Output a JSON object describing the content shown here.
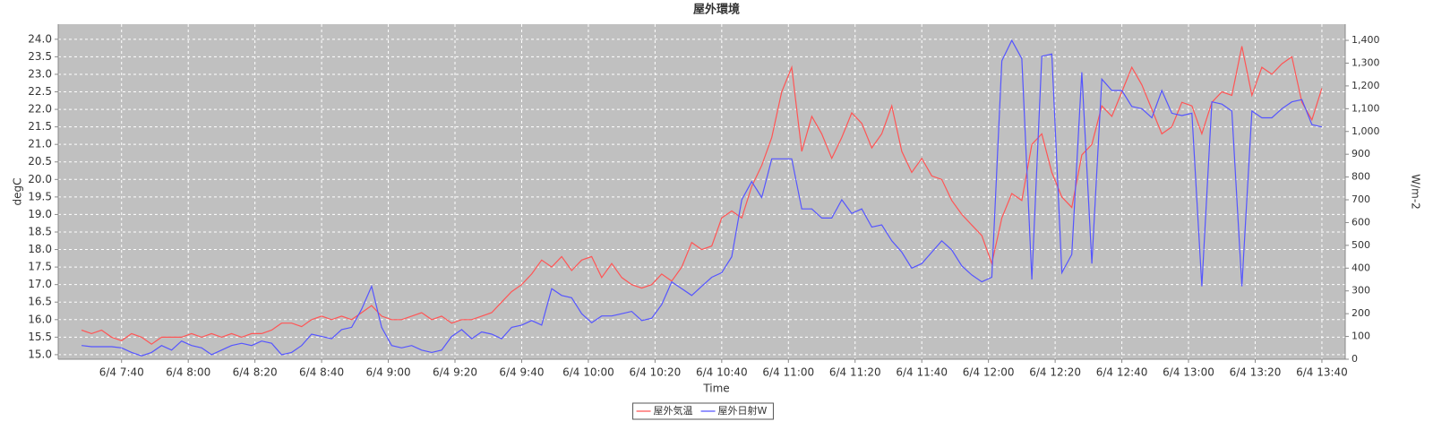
{
  "chart_data": {
    "type": "line",
    "title": "屋外環境",
    "x_label": "Time",
    "y_label": "degC",
    "y2_label": "W/m-2",
    "x": [
      "6/4 7:28",
      "6/4 7:31",
      "6/4 7:34",
      "6/4 7:37",
      "6/4 7:40",
      "6/4 7:43",
      "6/4 7:46",
      "6/4 7:49",
      "6/4 7:52",
      "6/4 7:55",
      "6/4 7:58",
      "6/4 8:01",
      "6/4 8:04",
      "6/4 8:07",
      "6/4 8:10",
      "6/4 8:13",
      "6/4 8:16",
      "6/4 8:19",
      "6/4 8:22",
      "6/4 8:25",
      "6/4 8:28",
      "6/4 8:31",
      "6/4 8:34",
      "6/4 8:37",
      "6/4 8:40",
      "6/4 8:43",
      "6/4 8:46",
      "6/4 8:49",
      "6/4 8:52",
      "6/4 8:55",
      "6/4 8:58",
      "6/4 9:01",
      "6/4 9:04",
      "6/4 9:07",
      "6/4 9:10",
      "6/4 9:13",
      "6/4 9:16",
      "6/4 9:19",
      "6/4 9:22",
      "6/4 9:25",
      "6/4 9:28",
      "6/4 9:31",
      "6/4 9:34",
      "6/4 9:37",
      "6/4 9:40",
      "6/4 9:43",
      "6/4 9:46",
      "6/4 9:49",
      "6/4 9:52",
      "6/4 9:55",
      "6/4 9:58",
      "6/4 10:01",
      "6/4 10:04",
      "6/4 10:07",
      "6/4 10:10",
      "6/4 10:13",
      "6/4 10:16",
      "6/4 10:19",
      "6/4 10:22",
      "6/4 10:25",
      "6/4 10:28",
      "6/4 10:31",
      "6/4 10:34",
      "6/4 10:37",
      "6/4 10:40",
      "6/4 10:43",
      "6/4 10:46",
      "6/4 10:49",
      "6/4 10:52",
      "6/4 10:55",
      "6/4 10:58",
      "6/4 11:01",
      "6/4 11:04",
      "6/4 11:07",
      "6/4 11:10",
      "6/4 11:13",
      "6/4 11:16",
      "6/4 11:19",
      "6/4 11:22",
      "6/4 11:25",
      "6/4 11:28",
      "6/4 11:31",
      "6/4 11:34",
      "6/4 11:37",
      "6/4 11:40",
      "6/4 11:43",
      "6/4 11:46",
      "6/4 11:49",
      "6/4 11:52",
      "6/4 11:55",
      "6/4 11:58",
      "6/4 12:01",
      "6/4 12:04",
      "6/4 12:07",
      "6/4 12:10",
      "6/4 12:13",
      "6/4 12:16",
      "6/4 12:19",
      "6/4 12:22",
      "6/4 12:25",
      "6/4 12:28",
      "6/4 12:31",
      "6/4 12:34",
      "6/4 12:37",
      "6/4 12:40",
      "6/4 12:43",
      "6/4 12:46",
      "6/4 12:49",
      "6/4 12:52",
      "6/4 12:55",
      "6/4 12:58",
      "6/4 13:01",
      "6/4 13:04",
      "6/4 13:07",
      "6/4 13:10",
      "6/4 13:13",
      "6/4 13:16",
      "6/4 13:19",
      "6/4 13:22",
      "6/4 13:25",
      "6/4 13:28",
      "6/4 13:31",
      "6/4 13:34",
      "6/4 13:37",
      "6/4 13:40"
    ],
    "series": [
      {
        "name": "屋外気温",
        "color": "#ff5555",
        "values": [
          15.7,
          15.6,
          15.7,
          15.5,
          15.4,
          15.6,
          15.5,
          15.3,
          15.5,
          15.5,
          15.5,
          15.6,
          15.5,
          15.6,
          15.5,
          15.6,
          15.5,
          15.6,
          15.6,
          15.7,
          15.9,
          15.9,
          15.8,
          16.0,
          16.1,
          16.0,
          16.1,
          16.0,
          16.2,
          16.4,
          16.1,
          16.0,
          16.0,
          16.1,
          16.2,
          16.0,
          16.1,
          15.9,
          16.0,
          16.0,
          16.1,
          16.2,
          16.5,
          16.8,
          17.0,
          17.3,
          17.7,
          17.5,
          17.8,
          17.4,
          17.7,
          17.8,
          17.2,
          17.6,
          17.2,
          17.0,
          16.9,
          17.0,
          17.3,
          17.1,
          17.5,
          18.2,
          18.0,
          18.1,
          18.9,
          19.1,
          18.9,
          19.8,
          20.4,
          21.2,
          22.5,
          23.2,
          20.8,
          21.8,
          21.3,
          20.6,
          21.2,
          21.9,
          21.6,
          20.9,
          21.3,
          22.1,
          20.8,
          20.2,
          20.6,
          20.1,
          20.0,
          19.4,
          19.0,
          18.7,
          18.4,
          17.6,
          18.9,
          19.6,
          19.4,
          21.0,
          21.3,
          20.2,
          19.5,
          19.2,
          20.7,
          21.0,
          22.1,
          21.8,
          22.5,
          23.2,
          22.7,
          22.0,
          21.3,
          21.5,
          22.2,
          22.1,
          21.3,
          22.2,
          22.5,
          22.4,
          23.8,
          22.4,
          23.2,
          23.0,
          23.3,
          23.5,
          22.2,
          21.7,
          22.6
        ]
      },
      {
        "name": "屋外日射W",
        "color": "#5555ff",
        "axis": "y2",
        "values": [
          60,
          55,
          55,
          55,
          50,
          30,
          15,
          30,
          60,
          40,
          80,
          60,
          50,
          20,
          40,
          60,
          70,
          60,
          80,
          70,
          20,
          30,
          60,
          110,
          100,
          90,
          130,
          140,
          220,
          320,
          140,
          60,
          50,
          60,
          40,
          30,
          40,
          100,
          130,
          90,
          120,
          110,
          90,
          140,
          150,
          170,
          150,
          310,
          280,
          270,
          200,
          160,
          190,
          190,
          200,
          210,
          170,
          180,
          240,
          340,
          310,
          280,
          320,
          360,
          380,
          450,
          700,
          780,
          710,
          880,
          880,
          880,
          660,
          660,
          620,
          620,
          700,
          640,
          660,
          580,
          590,
          520,
          470,
          400,
          420,
          470,
          520,
          480,
          410,
          370,
          340,
          360,
          1310,
          1400,
          1320,
          350,
          1330,
          1340,
          380,
          460,
          1260,
          420,
          1230,
          1180,
          1180,
          1110,
          1100,
          1060,
          1180,
          1080,
          1070,
          1080,
          320,
          1130,
          1120,
          1090,
          320,
          1090,
          1060,
          1060,
          1100,
          1130,
          1140,
          1030,
          1020
        ]
      }
    ],
    "xlim": [
      "6/4 7:21",
      "6/4 13:47"
    ],
    "xticks": [
      "6/4 7:40",
      "6/4 8:00",
      "6/4 8:20",
      "6/4 8:40",
      "6/4 9:00",
      "6/4 9:20",
      "6/4 9:40",
      "6/4 10:00",
      "6/4 10:20",
      "6/4 10:40",
      "6/4 11:00",
      "6/4 11:20",
      "6/4 11:40",
      "6/4 12:00",
      "6/4 12:20",
      "6/4 12:40",
      "6/4 13:00",
      "6/4 13:20",
      "6/4 13:40"
    ],
    "ylim": [
      14.87,
      24.43
    ],
    "yticks": [
      {
        "value": 15,
        "label": "15.0"
      },
      {
        "value": 15.5,
        "label": "15.5"
      },
      {
        "value": 16,
        "label": "16.0"
      },
      {
        "value": 16.5,
        "label": "16.5"
      },
      {
        "value": 17,
        "label": "17.0"
      },
      {
        "value": 17.5,
        "label": "17.5"
      },
      {
        "value": 18,
        "label": "18.0"
      },
      {
        "value": 18.5,
        "label": "18.5"
      },
      {
        "value": 19,
        "label": "19.0"
      },
      {
        "value": 19.5,
        "label": "19.5"
      },
      {
        "value": 20,
        "label": "20.0"
      },
      {
        "value": 20.5,
        "label": "20.5"
      },
      {
        "value": 21,
        "label": "21.0"
      },
      {
        "value": 21.5,
        "label": "21.5"
      },
      {
        "value": 22,
        "label": "22.0"
      },
      {
        "value": 22.5,
        "label": "22.5"
      },
      {
        "value": 23,
        "label": "23.0"
      },
      {
        "value": 23.5,
        "label": "23.5"
      },
      {
        "value": 24,
        "label": "24.0"
      }
    ],
    "y2lim": [
      0,
      1471
    ],
    "y2ticks": [
      0,
      100,
      200,
      300,
      400,
      500,
      600,
      700,
      800,
      900,
      {
        "value": 1000,
        "label": "1,000"
      },
      {
        "value": 1100,
        "label": "1,100"
      },
      {
        "value": 1200,
        "label": "1,200"
      },
      {
        "value": 1300,
        "label": "1,300"
      },
      {
        "value": 1400,
        "label": "1,400"
      }
    ],
    "grid": true,
    "legend": "bottom"
  }
}
